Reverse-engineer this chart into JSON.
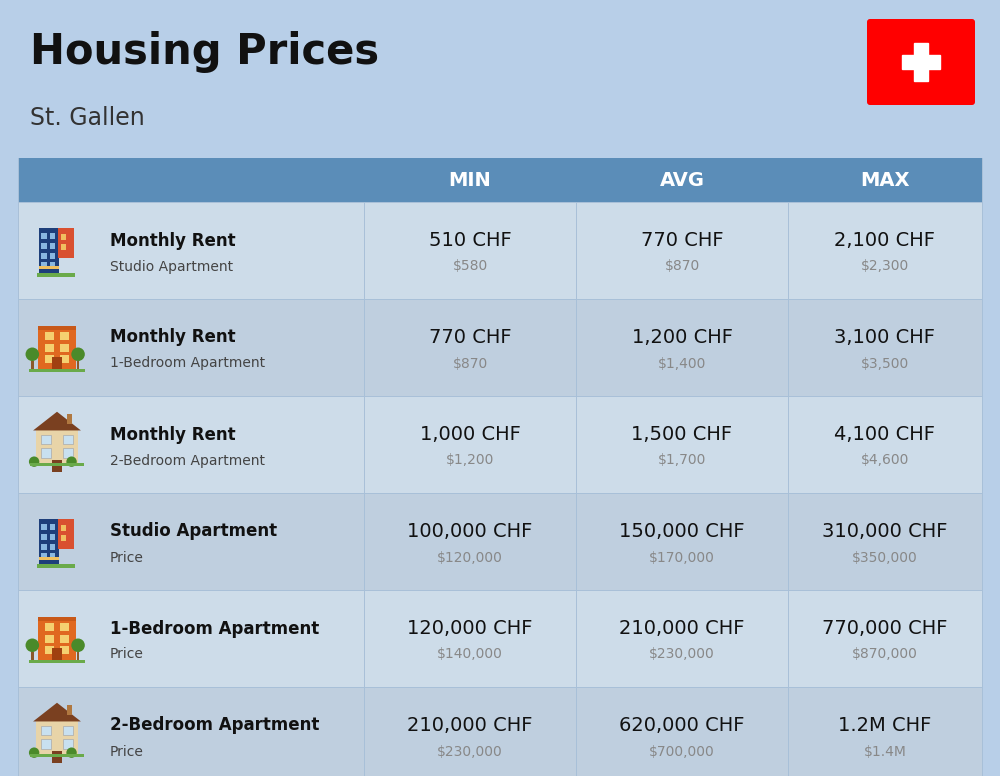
{
  "title": "Housing Prices",
  "subtitle": "St. Gallen",
  "bg_color": "#b8cfe8",
  "header_bg_color": "#5b8db8",
  "header_text_color": "#ffffff",
  "row_bg_light": "#cddce9",
  "row_bg_dark": "#bfcfdf",
  "col_headers": [
    "MIN",
    "AVG",
    "MAX"
  ],
  "rows": [
    {
      "label_bold": "Monthly Rent",
      "label_sub": "Studio Apartment",
      "icon_type": "studio_blue",
      "min_chf": "510 CHF",
      "min_usd": "$580",
      "avg_chf": "770 CHF",
      "avg_usd": "$870",
      "max_chf": "2,100 CHF",
      "max_usd": "$2,300"
    },
    {
      "label_bold": "Monthly Rent",
      "label_sub": "1-Bedroom Apartment",
      "icon_type": "one_bed_orange",
      "min_chf": "770 CHF",
      "min_usd": "$870",
      "avg_chf": "1,200 CHF",
      "avg_usd": "$1,400",
      "max_chf": "3,100 CHF",
      "max_usd": "$3,500"
    },
    {
      "label_bold": "Monthly Rent",
      "label_sub": "2-Bedroom Apartment",
      "icon_type": "two_bed_tan",
      "min_chf": "1,000 CHF",
      "min_usd": "$1,200",
      "avg_chf": "1,500 CHF",
      "avg_usd": "$1,700",
      "max_chf": "4,100 CHF",
      "max_usd": "$4,600"
    },
    {
      "label_bold": "Studio Apartment",
      "label_sub": "Price",
      "icon_type": "studio_blue2",
      "min_chf": "100,000 CHF",
      "min_usd": "$120,000",
      "avg_chf": "150,000 CHF",
      "avg_usd": "$170,000",
      "max_chf": "310,000 CHF",
      "max_usd": "$350,000"
    },
    {
      "label_bold": "1-Bedroom Apartment",
      "label_sub": "Price",
      "icon_type": "one_bed_orange2",
      "min_chf": "120,000 CHF",
      "min_usd": "$140,000",
      "avg_chf": "210,000 CHF",
      "avg_usd": "$230,000",
      "max_chf": "770,000 CHF",
      "max_usd": "$870,000"
    },
    {
      "label_bold": "2-Bedroom Apartment",
      "label_sub": "Price",
      "icon_type": "two_bed_brown",
      "min_chf": "210,000 CHF",
      "min_usd": "$230,000",
      "avg_chf": "620,000 CHF",
      "avg_usd": "$700,000",
      "max_chf": "1.2M CHF",
      "max_usd": "$1.4M"
    }
  ],
  "swiss_flag_color": "#ff0000",
  "chf_fontsize": 14,
  "usd_fontsize": 10,
  "label_bold_fontsize": 12,
  "label_sub_fontsize": 10
}
